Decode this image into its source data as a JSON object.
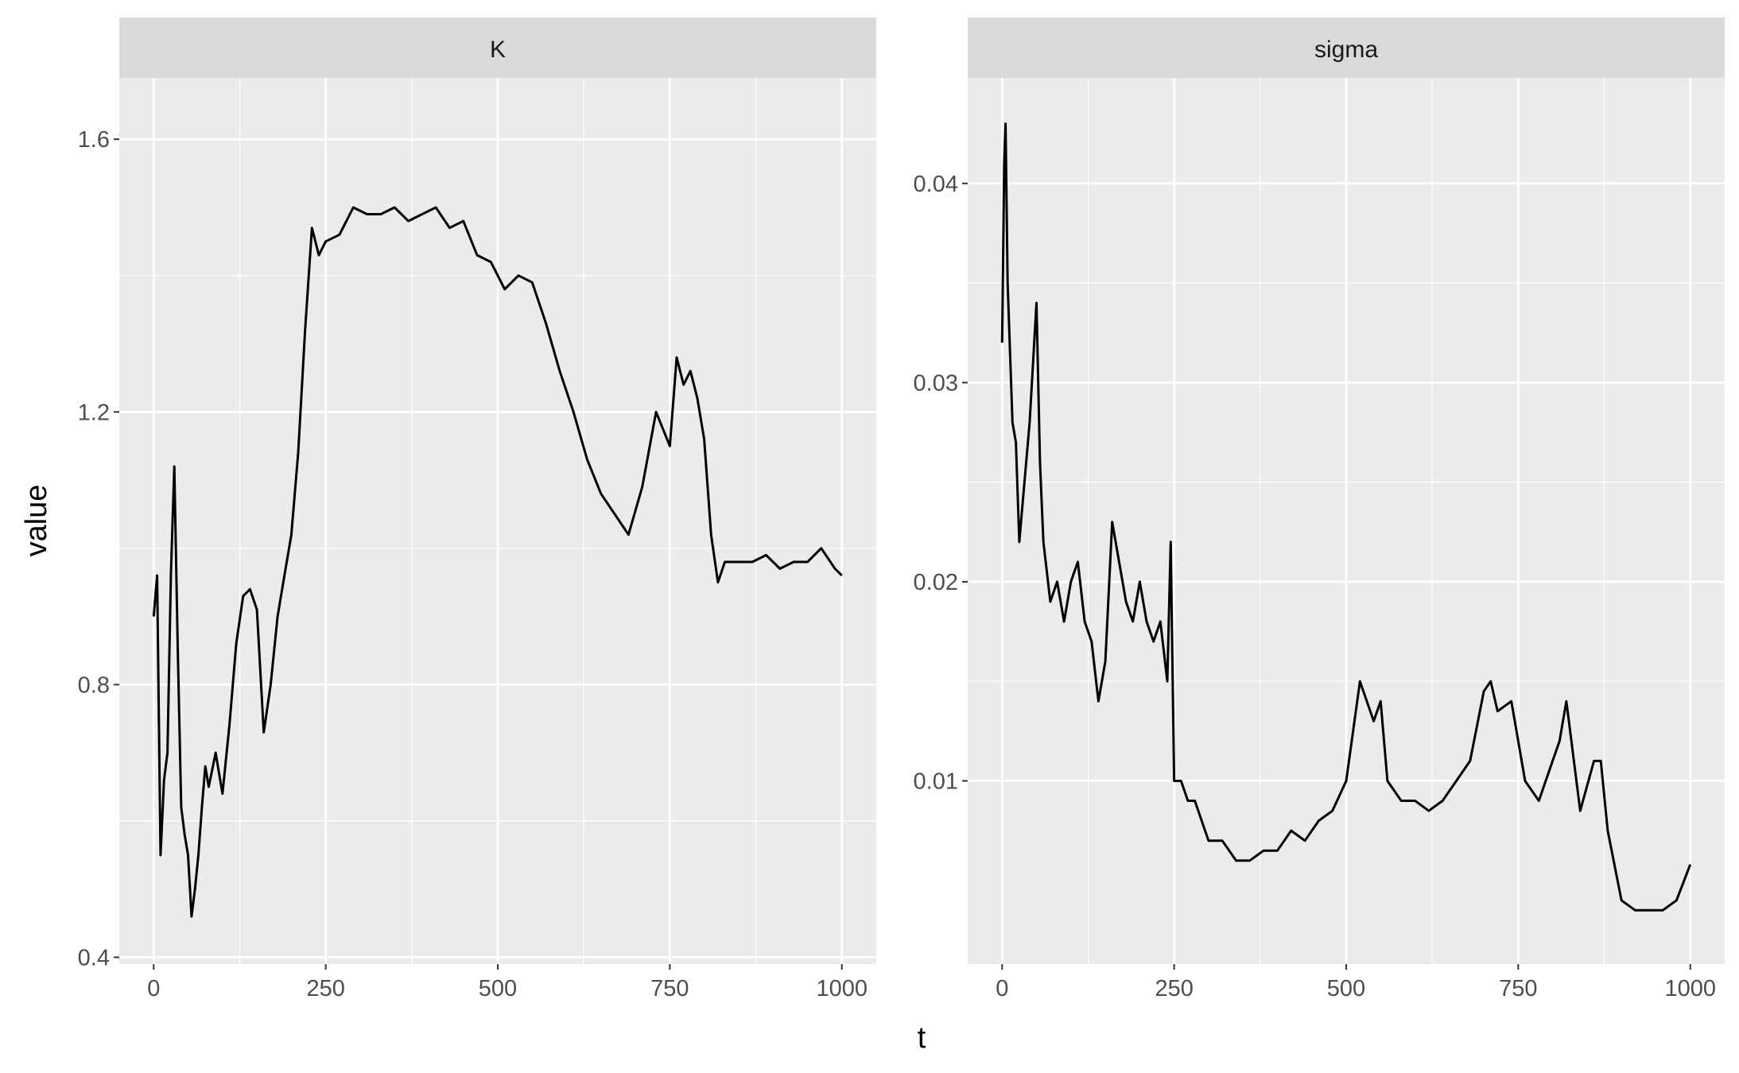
{
  "x_axis_title": "t",
  "y_axis_title": "value",
  "chart_data": [
    {
      "type": "line",
      "facet": "K",
      "x_ticks": [
        0,
        250,
        500,
        750,
        1000
      ],
      "y_ticks": [
        0.4,
        0.8,
        1.2,
        1.6
      ],
      "y_tick_labels": [
        "0.4",
        "0.8",
        "1.2",
        "1.6"
      ],
      "xlim": [
        -50,
        1050
      ],
      "ylim": [
        0.39,
        1.69
      ],
      "series": [
        {
          "color": "#000000",
          "x": [
            0,
            5,
            10,
            15,
            20,
            25,
            30,
            35,
            40,
            45,
            50,
            55,
            60,
            65,
            70,
            75,
            80,
            90,
            100,
            110,
            120,
            130,
            140,
            150,
            160,
            170,
            180,
            190,
            200,
            210,
            220,
            230,
            240,
            250,
            270,
            290,
            310,
            330,
            350,
            370,
            390,
            410,
            430,
            450,
            470,
            490,
            510,
            530,
            550,
            570,
            590,
            610,
            630,
            650,
            670,
            690,
            710,
            730,
            750,
            760,
            770,
            780,
            790,
            800,
            810,
            820,
            830,
            850,
            870,
            890,
            910,
            930,
            950,
            970,
            990,
            1000
          ],
          "y": [
            0.9,
            0.96,
            0.55,
            0.66,
            0.7,
            0.96,
            1.12,
            0.85,
            0.62,
            0.58,
            0.55,
            0.46,
            0.5,
            0.55,
            0.62,
            0.68,
            0.65,
            0.7,
            0.64,
            0.74,
            0.86,
            0.93,
            0.94,
            0.91,
            0.73,
            0.8,
            0.9,
            0.96,
            1.02,
            1.14,
            1.32,
            1.47,
            1.43,
            1.45,
            1.46,
            1.5,
            1.49,
            1.49,
            1.5,
            1.48,
            1.49,
            1.5,
            1.47,
            1.48,
            1.43,
            1.42,
            1.38,
            1.4,
            1.39,
            1.33,
            1.26,
            1.2,
            1.13,
            1.08,
            1.05,
            1.02,
            1.09,
            1.2,
            1.15,
            1.28,
            1.24,
            1.26,
            1.22,
            1.16,
            1.02,
            0.95,
            0.98,
            0.98,
            0.98,
            0.99,
            0.97,
            0.98,
            0.98,
            1.0,
            0.97,
            0.96
          ]
        }
      ]
    },
    {
      "type": "line",
      "facet": "sigma",
      "x_ticks": [
        0,
        250,
        500,
        750,
        1000
      ],
      "y_ticks": [
        0.01,
        0.02,
        0.03,
        0.04
      ],
      "y_tick_labels": [
        "0.01",
        "0.02",
        "0.03",
        "0.04"
      ],
      "xlim": [
        -50,
        1050
      ],
      "ylim": [
        0.0008,
        0.0453
      ],
      "series": [
        {
          "color": "#000000",
          "x": [
            0,
            3,
            5,
            8,
            12,
            15,
            20,
            25,
            30,
            40,
            50,
            55,
            60,
            70,
            80,
            90,
            100,
            110,
            120,
            130,
            140,
            150,
            160,
            170,
            180,
            190,
            200,
            210,
            220,
            230,
            240,
            245,
            250,
            260,
            270,
            280,
            300,
            320,
            340,
            360,
            380,
            400,
            420,
            440,
            460,
            480,
            500,
            510,
            520,
            540,
            550,
            560,
            580,
            600,
            620,
            640,
            660,
            680,
            700,
            710,
            720,
            740,
            760,
            780,
            800,
            810,
            820,
            840,
            860,
            870,
            880,
            900,
            920,
            940,
            960,
            980,
            1000
          ],
          "y": [
            0.032,
            0.041,
            0.043,
            0.035,
            0.031,
            0.028,
            0.027,
            0.022,
            0.024,
            0.028,
            0.034,
            0.026,
            0.022,
            0.019,
            0.02,
            0.018,
            0.02,
            0.021,
            0.018,
            0.017,
            0.014,
            0.016,
            0.023,
            0.021,
            0.019,
            0.018,
            0.02,
            0.018,
            0.017,
            0.018,
            0.015,
            0.022,
            0.01,
            0.01,
            0.009,
            0.009,
            0.007,
            0.007,
            0.006,
            0.006,
            0.0065,
            0.0065,
            0.0075,
            0.007,
            0.008,
            0.0085,
            0.01,
            0.0125,
            0.015,
            0.013,
            0.014,
            0.01,
            0.009,
            0.009,
            0.0085,
            0.009,
            0.01,
            0.011,
            0.0145,
            0.015,
            0.0135,
            0.014,
            0.01,
            0.009,
            0.011,
            0.012,
            0.014,
            0.0085,
            0.011,
            0.011,
            0.0075,
            0.004,
            0.0035,
            0.0035,
            0.0035,
            0.004,
            0.0058
          ]
        }
      ]
    }
  ]
}
